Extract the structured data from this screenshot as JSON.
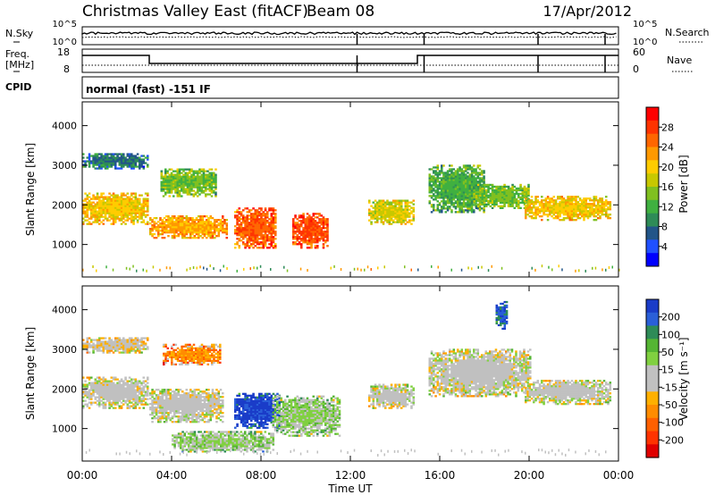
{
  "header": {
    "title": "Christmas Valley East (fitACF)",
    "beam": "Beam 08",
    "date": "17/Apr/2012"
  },
  "params": {
    "nsky_label": "N.Sky",
    "nsearch_label": "N.Search",
    "freq_label_1": "Freq.",
    "freq_label_2": "[MHz]",
    "nave_label": "Nave",
    "cpid_label": "CPID",
    "cpid_value": "normal (fast) -151 IF",
    "noise_ticks": [
      "10^5",
      "10^0"
    ],
    "noise_ticks_right": [
      "10^5",
      "10^0"
    ],
    "freq_ticks": [
      "18",
      "8"
    ],
    "nave_ticks": [
      "60",
      "0"
    ]
  },
  "axes": {
    "xlabel": "Time UT",
    "ylabel": "Slant Range [km]",
    "xticks": [
      "00:00",
      "04:00",
      "08:00",
      "12:00",
      "16:00",
      "20:00",
      "00:00"
    ],
    "yticks": [
      "1000",
      "2000",
      "3000",
      "4000"
    ]
  },
  "colorbars": {
    "power": {
      "label": "Power [dB]",
      "ticks": [
        "28",
        "24",
        "20",
        "16",
        "12",
        "8",
        "4"
      ],
      "colors": [
        "#0000ff",
        "#2050ff",
        "#225588",
        "#2e8b57",
        "#40b040",
        "#80c020",
        "#c8c800",
        "#ffcc00",
        "#ff9900",
        "#ff6600",
        "#ff3300",
        "#ff0000"
      ]
    },
    "velocity": {
      "label": "Velocity [m s⁻¹]",
      "ticks": [
        "200",
        "100",
        "50",
        "15",
        "-15",
        "-50",
        "-100",
        "-200"
      ],
      "colors": [
        "#1a3cc8",
        "#2a5fd8",
        "#2e8b57",
        "#55b533",
        "#80d040",
        "#c0c0c0",
        "#c0c0c0",
        "#ffb000",
        "#ff8c00",
        "#ff6000",
        "#ff3300",
        "#e00000"
      ]
    }
  },
  "chart_data": [
    {
      "type": "heatmap",
      "title": "Power",
      "xlabel": "Time UT",
      "ylabel": "Slant Range [km]",
      "xlim": [
        0,
        24
      ],
      "ylim": [
        180,
        4600
      ],
      "colorbar_label": "Power [dB]",
      "colorbar_range": [
        0,
        32
      ],
      "regions": [
        {
          "t0": 0.0,
          "t1": 2.9,
          "r0": 1500,
          "r1": 2300,
          "value": 20
        },
        {
          "t0": 0.0,
          "t1": 2.9,
          "r0": 2900,
          "r1": 3300,
          "value": 8
        },
        {
          "t0": 3.0,
          "t1": 6.5,
          "r0": 1150,
          "r1": 1700,
          "value": 22
        },
        {
          "t0": 3.5,
          "t1": 6.0,
          "r0": 2200,
          "r1": 2900,
          "value": 14
        },
        {
          "t0": 6.8,
          "t1": 8.6,
          "r0": 900,
          "r1": 1900,
          "value": 26
        },
        {
          "t0": 9.4,
          "t1": 11.0,
          "r0": 900,
          "r1": 1800,
          "value": 27
        },
        {
          "t0": 12.8,
          "t1": 14.8,
          "r0": 1500,
          "r1": 2100,
          "value": 18
        },
        {
          "t0": 15.5,
          "t1": 18.0,
          "r0": 1800,
          "r1": 3000,
          "value": 12
        },
        {
          "t0": 17.5,
          "t1": 20.0,
          "r0": 1900,
          "r1": 2500,
          "value": 14
        },
        {
          "t0": 19.8,
          "t1": 23.6,
          "r0": 1600,
          "r1": 2200,
          "value": 20
        }
      ]
    },
    {
      "type": "heatmap",
      "title": "Velocity",
      "xlabel": "Time UT",
      "ylabel": "Slant Range [km]",
      "xlim": [
        0,
        24
      ],
      "ylim": [
        180,
        4600
      ],
      "colorbar_label": "Velocity [m s⁻¹]",
      "colorbar_range": [
        -200,
        200
      ],
      "regions": [
        {
          "t0": 0.0,
          "t1": 2.9,
          "r0": 1500,
          "r1": 2300,
          "value": 0
        },
        {
          "t0": 0.0,
          "t1": 2.9,
          "r0": 2900,
          "r1": 3300,
          "value": -20
        },
        {
          "t0": 3.0,
          "t1": 6.3,
          "r0": 1150,
          "r1": 2000,
          "value": 0
        },
        {
          "t0": 3.6,
          "t1": 6.2,
          "r0": 2600,
          "r1": 3100,
          "value": -80
        },
        {
          "t0": 4.0,
          "t1": 8.5,
          "r0": 400,
          "r1": 900,
          "value": 40
        },
        {
          "t0": 6.8,
          "t1": 8.8,
          "r0": 1000,
          "r1": 1900,
          "value": 180
        },
        {
          "t0": 8.5,
          "t1": 11.5,
          "r0": 800,
          "r1": 1800,
          "value": 40
        },
        {
          "t0": 12.8,
          "t1": 14.8,
          "r0": 1500,
          "r1": 2100,
          "value": 0
        },
        {
          "t0": 15.5,
          "t1": 20.0,
          "r0": 1800,
          "r1": 3000,
          "value": 0
        },
        {
          "t0": 18.5,
          "t1": 19.0,
          "r0": 3500,
          "r1": 4200,
          "value": 150
        },
        {
          "t0": 19.8,
          "t1": 23.6,
          "r0": 1600,
          "r1": 2200,
          "value": 0
        }
      ]
    }
  ]
}
